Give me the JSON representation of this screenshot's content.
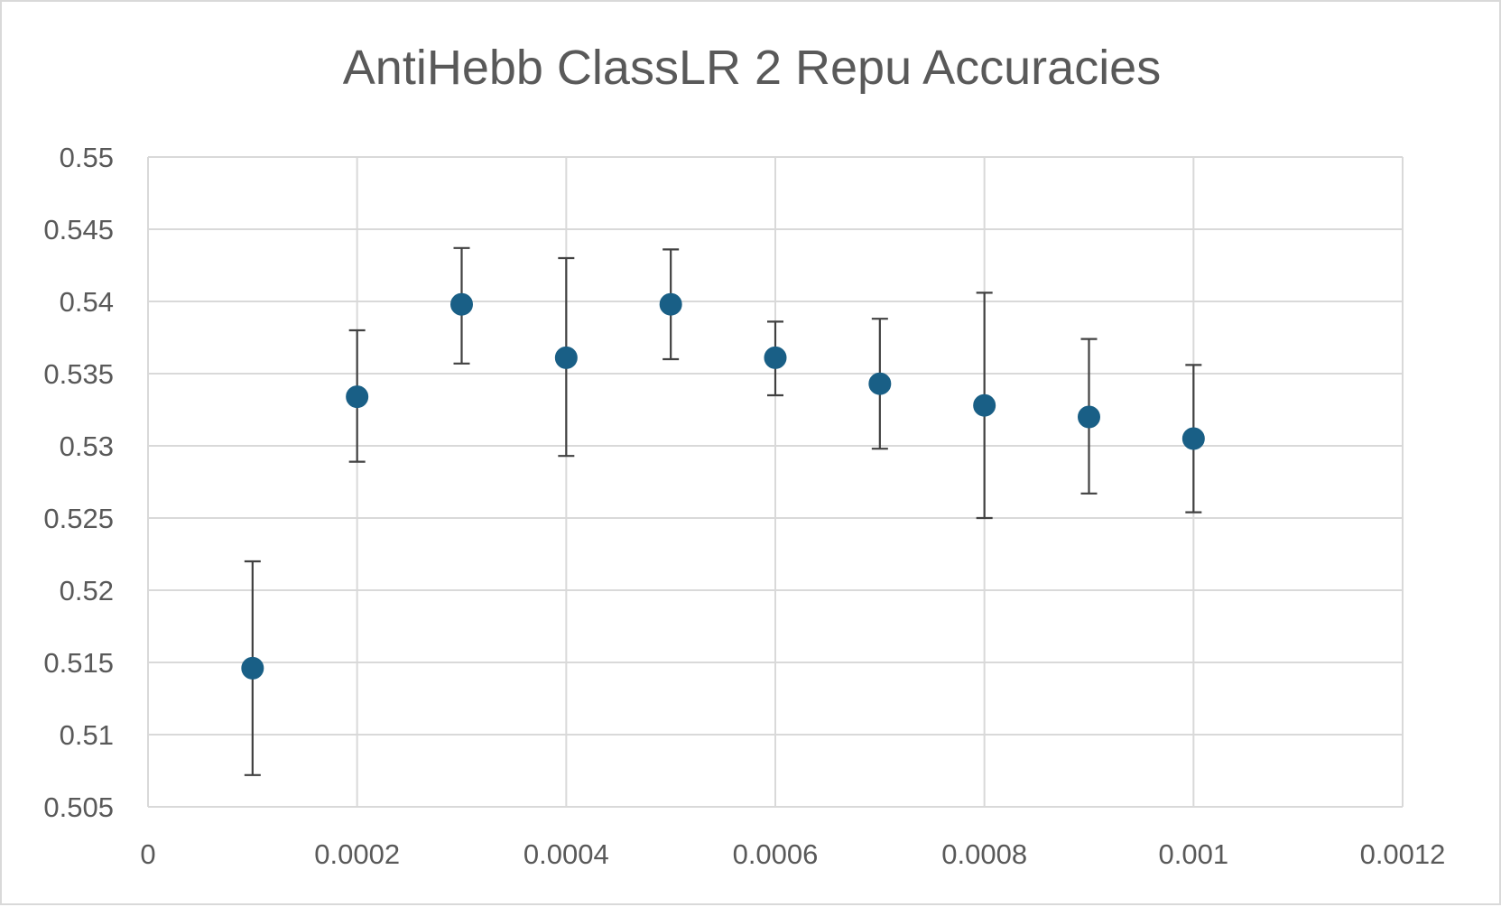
{
  "chart_data": {
    "type": "scatter",
    "title": "AntiHebb ClassLR 2 Repu Accuracies",
    "xlabel": "",
    "ylabel": "",
    "xlim": [
      0,
      0.0012
    ],
    "ylim": [
      0.505,
      0.55
    ],
    "x_ticks": [
      0,
      0.0002,
      0.0004,
      0.0006,
      0.0008,
      0.001,
      0.0012
    ],
    "x_tick_labels": [
      "0",
      "0.0002",
      "0.0004",
      "0.0006",
      "0.0008",
      "0.001",
      "0.0012"
    ],
    "y_ticks": [
      0.505,
      0.51,
      0.515,
      0.52,
      0.525,
      0.53,
      0.535,
      0.54,
      0.545,
      0.55
    ],
    "y_tick_labels": [
      "0.505",
      "0.51",
      "0.515",
      "0.52",
      "0.525",
      "0.53",
      "0.535",
      "0.54",
      "0.545",
      "0.55"
    ],
    "grid": true,
    "legend": "none",
    "marker_color": "#195f86",
    "error_bar_color": "#404040",
    "series": [
      {
        "x": [
          0.0001,
          0.0002,
          0.0003,
          0.0004,
          0.0005,
          0.0006,
          0.0007,
          0.0008,
          0.0009,
          0.001
        ],
        "y": [
          0.5146,
          0.5334,
          0.5398,
          0.5361,
          0.5398,
          0.5361,
          0.5343,
          0.5328,
          0.532,
          0.5305
        ],
        "y_upper": [
          0.522,
          0.538,
          0.5437,
          0.543,
          0.5436,
          0.5386,
          0.5388,
          0.5406,
          0.5374,
          0.5356
        ],
        "y_lower": [
          0.5072,
          0.5289,
          0.5357,
          0.5293,
          0.536,
          0.5335,
          0.5298,
          0.525,
          0.5267,
          0.5254
        ]
      }
    ]
  }
}
